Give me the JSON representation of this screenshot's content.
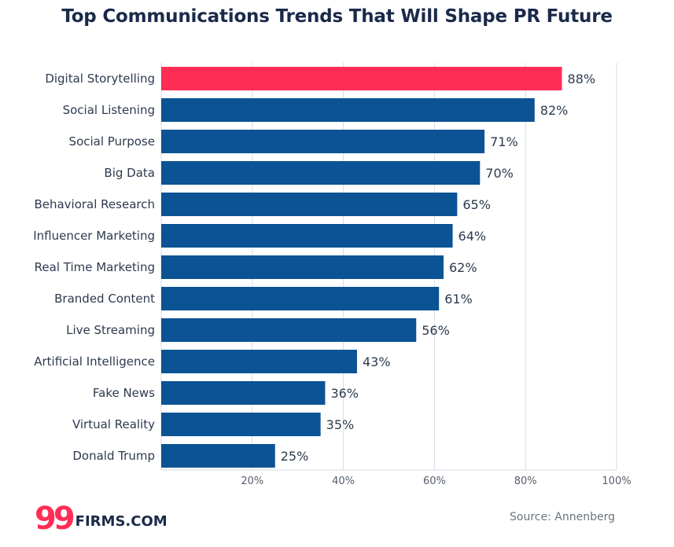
{
  "chart_data": {
    "type": "bar",
    "orientation": "horizontal",
    "title": "Top Communications Trends That Will Shape PR Future",
    "categories": [
      "Digital Storytelling",
      "Social Listening",
      "Social Purpose",
      "Big Data",
      "Behavioral Research",
      "Influencer Marketing",
      "Real Time Marketing",
      "Branded Content",
      "Live Streaming",
      "Artificial Intelligence",
      "Fake News",
      "Virtual Reality",
      "Donald Trump"
    ],
    "values": [
      88,
      82,
      71,
      70,
      65,
      64,
      62,
      61,
      56,
      43,
      36,
      35,
      25
    ],
    "value_labels": [
      "88%",
      "82%",
      "71%",
      "70%",
      "65%",
      "64%",
      "62%",
      "61%",
      "56%",
      "43%",
      "36%",
      "35%",
      "25%"
    ],
    "xlim": [
      0,
      100
    ],
    "xticks": [
      20,
      40,
      60,
      80,
      100
    ],
    "xtick_labels": [
      "20%",
      "40%",
      "60%",
      "80%",
      "100%"
    ],
    "highlight_index": 0,
    "grid": true,
    "xlabel": "",
    "ylabel": ""
  },
  "colors": {
    "bar": "#0b5394",
    "highlight": "#ff2d55",
    "highlight_label": "#ff2d55",
    "grid": "#d5dce4",
    "title": "#1b2a4a"
  },
  "footer": {
    "logo_mark": "99",
    "logo_text": "FIRMS.COM",
    "source": "Source: Annenberg"
  }
}
